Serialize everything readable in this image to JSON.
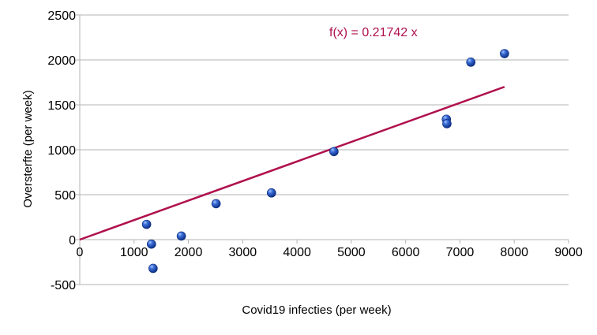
{
  "chart_data": {
    "type": "scatter",
    "xlabel": "Covid19 infecties (per week)",
    "ylabel": "Oversterfte (per week)",
    "xlim": [
      0,
      9000
    ],
    "ylim": [
      -500,
      2500
    ],
    "x_ticks": [
      "0",
      "1000",
      "2000",
      "3000",
      "4000",
      "5000",
      "6000",
      "7000",
      "8000",
      "9000"
    ],
    "y_ticks": [
      "-500",
      "0",
      "500",
      "1000",
      "1500",
      "2000",
      "2500"
    ],
    "grid": "horizontal",
    "points": [
      {
        "x": 1230,
        "y": 170
      },
      {
        "x": 1320,
        "y": -50
      },
      {
        "x": 1350,
        "y": -320
      },
      {
        "x": 1870,
        "y": 40
      },
      {
        "x": 2510,
        "y": 400
      },
      {
        "x": 3530,
        "y": 520
      },
      {
        "x": 4680,
        "y": 980
      },
      {
        "x": 6750,
        "y": 1340
      },
      {
        "x": 6760,
        "y": 1290
      },
      {
        "x": 7200,
        "y": 1975
      },
      {
        "x": 7820,
        "y": 2070
      }
    ],
    "trendline": {
      "formula": "f(x) = 0.21742 x",
      "slope": 0.21742,
      "x_range": [
        0,
        7820
      ]
    },
    "colors": {
      "point": "#1f4fb0",
      "trendline": "#b0104e",
      "grid": "#b3b3b3",
      "axis": "#b3b3b3"
    }
  }
}
